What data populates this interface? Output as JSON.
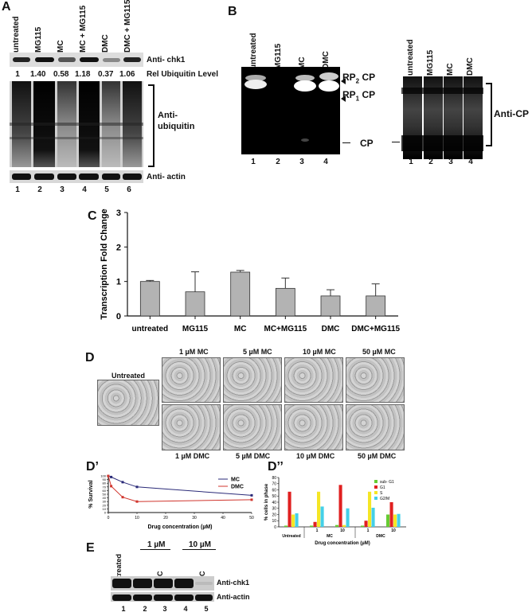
{
  "panelA": {
    "letter": "A",
    "lanes": [
      "untreated",
      "MG115",
      "MC",
      "MC + MG115",
      "DMC",
      "DMC + MG115"
    ],
    "label_chk1": "Anti- chk1",
    "rel_values": [
      "1",
      "1.40",
      "0.58",
      "1.18",
      "0.37",
      "1.06"
    ],
    "rel_label": "Rel Ubiquitin Level",
    "label_ub": "Anti-\nubiquitin",
    "label_actin": "Anti- actin",
    "lane_numbers": [
      "1",
      "2",
      "3",
      "4",
      "5",
      "6"
    ]
  },
  "panelB": {
    "letter": "B",
    "lanes": [
      "untreated",
      "MG115",
      "MC",
      "DMC"
    ],
    "rp2cp": "RP",
    "rp2sub": "2",
    "rp1cp": "RP",
    "rp1sub": "1",
    "cp_word": "CP",
    "cp": "CP",
    "anti_cp": "Anti-CP",
    "lane_numbers": [
      "1",
      "2",
      "3",
      "4"
    ]
  },
  "panelC": {
    "letter": "C"
  },
  "chart_data": [
    {
      "type": "bar",
      "categories": [
        "untreated",
        "MG115",
        "MC",
        "MC+MG115",
        "DMC",
        "DMC+MG115"
      ],
      "values": [
        1.0,
        0.7,
        1.27,
        0.8,
        0.58,
        0.58
      ],
      "errors": [
        0.03,
        0.58,
        0.05,
        0.3,
        0.18,
        0.35
      ],
      "ylabel": "Transcription Fold Change",
      "ylim": [
        0,
        3
      ],
      "yticks": [
        0,
        1,
        2,
        3
      ],
      "bar_color": "#b3b3b3"
    },
    {
      "type": "line",
      "x": [
        0,
        1,
        5,
        10,
        50
      ],
      "series": [
        {
          "name": "MC",
          "values": [
            100,
            97,
            83,
            70,
            47
          ],
          "color": "#2a2a78"
        },
        {
          "name": "DMC",
          "values": [
            100,
            72,
            42,
            30,
            35
          ],
          "color": "#d0342c"
        }
      ],
      "xlabel": "Drug concentration (µM)",
      "ylabel": "% Survival",
      "xlim": [
        0,
        50
      ],
      "ylim": [
        0,
        100
      ],
      "xticks": [
        0,
        10,
        20,
        30,
        40,
        50
      ],
      "yticks": [
        0,
        10,
        20,
        30,
        40,
        50,
        60,
        70,
        80,
        90,
        100
      ]
    },
    {
      "type": "bar",
      "groups": [
        {
          "label": "Untreated",
          "subs": [
            ""
          ]
        },
        {
          "label": "MC",
          "subs": [
            "1",
            "10"
          ]
        },
        {
          "label": "DMC",
          "subs": [
            "1",
            "10"
          ]
        }
      ],
      "series": [
        {
          "name": "sub- G1",
          "color": "#66cc33",
          "values": [
            2,
            2,
            3,
            2,
            20
          ]
        },
        {
          "name": "G1",
          "color": "#e02020",
          "values": [
            57,
            8,
            68,
            10,
            40
          ]
        },
        {
          "name": "S",
          "color": "#f5e625",
          "values": [
            20,
            57,
            3,
            57,
            20
          ]
        },
        {
          "name": "G2/M",
          "color": "#44d0e8",
          "values": [
            22,
            33,
            30,
            31,
            21
          ]
        }
      ],
      "xlabel": "Drug concentration (µM)",
      "ylabel": "% cells in phase",
      "ylim": [
        0,
        80
      ],
      "yticks": [
        0,
        10,
        20,
        30,
        40,
        50,
        60,
        70,
        80
      ]
    }
  ],
  "panelD": {
    "letter": "D",
    "untreated": "Untreated",
    "top_labels": [
      "1 µM MC",
      "5 µM MC",
      "10 µM MC",
      "50 µM MC"
    ],
    "bottom_labels": [
      "1 µM DMC",
      "5 µM DMC",
      "10 µM DMC",
      "50 µM DMC"
    ]
  },
  "panelD2": {
    "letter": "D’"
  },
  "panelD3": {
    "letter": "D’’"
  },
  "panelE": {
    "letter": "E",
    "conc1": "1 µM",
    "conc2": "10 µM",
    "lanes": [
      "Untreated",
      "MC",
      "DMC",
      "MC",
      "DMC"
    ],
    "chk1": "Anti-chk1",
    "actin": "Anti-actin",
    "lane_numbers": [
      "1",
      "2",
      "3",
      "4",
      "5"
    ]
  }
}
